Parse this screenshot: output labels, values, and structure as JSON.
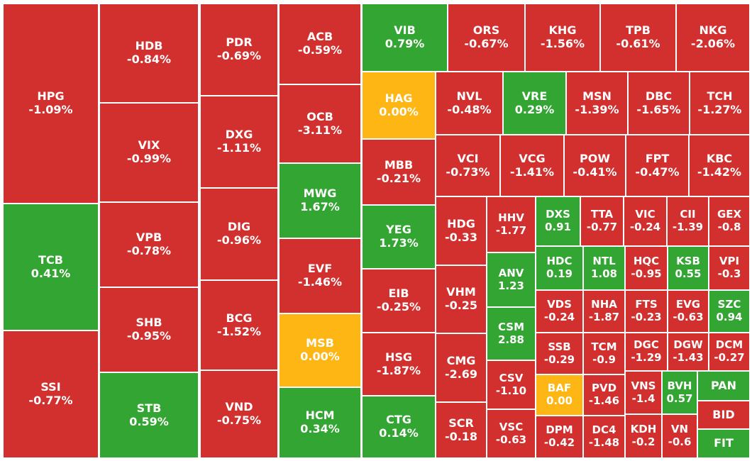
{
  "colors": {
    "down": "#d1302f",
    "up": "#33a532",
    "flat": "#fdb614"
  },
  "chart_data": {
    "type": "treemap",
    "tiles": [
      {
        "ticker": "HPG",
        "change": "-1.09%",
        "value": -1.09
      },
      {
        "ticker": "TCB",
        "change": "0.41%",
        "value": 0.41
      },
      {
        "ticker": "SSI",
        "change": "-0.77%",
        "value": -0.77
      },
      {
        "ticker": "HDB",
        "change": "-0.84%",
        "value": -0.84
      },
      {
        "ticker": "VIX",
        "change": "-0.99%",
        "value": -0.99
      },
      {
        "ticker": "VPB",
        "change": "-0.78%",
        "value": -0.78
      },
      {
        "ticker": "SHB",
        "change": "-0.95%",
        "value": -0.95
      },
      {
        "ticker": "STB",
        "change": "0.59%",
        "value": 0.59
      },
      {
        "ticker": "PDR",
        "change": "-0.69%",
        "value": -0.69
      },
      {
        "ticker": "DXG",
        "change": "-1.11%",
        "value": -1.11
      },
      {
        "ticker": "DIG",
        "change": "-0.96%",
        "value": -0.96
      },
      {
        "ticker": "BCG",
        "change": "-1.52%",
        "value": -1.52
      },
      {
        "ticker": "VND",
        "change": "-0.75%",
        "value": -0.75
      },
      {
        "ticker": "ACB",
        "change": "-0.59%",
        "value": -0.59
      },
      {
        "ticker": "OCB",
        "change": "-3.11%",
        "value": -3.11
      },
      {
        "ticker": "MWG",
        "change": "1.67%",
        "value": 1.67
      },
      {
        "ticker": "EVF",
        "change": "-1.46%",
        "value": -1.46
      },
      {
        "ticker": "MSB",
        "change": "0.00%",
        "value": 0
      },
      {
        "ticker": "HCM",
        "change": "0.34%",
        "value": 0.34
      },
      {
        "ticker": "VIB",
        "change": "0.79%",
        "value": 0.79
      },
      {
        "ticker": "HAG",
        "change": "0.00%",
        "value": 0
      },
      {
        "ticker": "MBB",
        "change": "-0.21%",
        "value": -0.21
      },
      {
        "ticker": "YEG",
        "change": "1.73%",
        "value": 1.73
      },
      {
        "ticker": "EIB",
        "change": "-0.25%",
        "value": -0.25
      },
      {
        "ticker": "HSG",
        "change": "-1.87%",
        "value": -1.87
      },
      {
        "ticker": "CTG",
        "change": "0.14%",
        "value": 0.14
      },
      {
        "ticker": "ORS",
        "change": "-0.67%",
        "value": -0.67
      },
      {
        "ticker": "KHG",
        "change": "-1.56%",
        "value": -1.56
      },
      {
        "ticker": "TPB",
        "change": "-0.61%",
        "value": -0.61
      },
      {
        "ticker": "NKG",
        "change": "-2.06%",
        "value": -2.06
      },
      {
        "ticker": "NVL",
        "change": "-0.48%",
        "value": -0.48
      },
      {
        "ticker": "VRE",
        "change": "0.29%",
        "value": 0.29
      },
      {
        "ticker": "MSN",
        "change": "-1.39%",
        "value": -1.39
      },
      {
        "ticker": "DBC",
        "change": "-1.65%",
        "value": -1.65
      },
      {
        "ticker": "TCH",
        "change": "-1.27%",
        "value": -1.27
      },
      {
        "ticker": "VCI",
        "change": "-0.73%",
        "value": -0.73
      },
      {
        "ticker": "VCG",
        "change": "-1.41%",
        "value": -1.41
      },
      {
        "ticker": "POW",
        "change": "-0.41%",
        "value": -0.41
      },
      {
        "ticker": "FPT",
        "change": "-0.47%",
        "value": -0.47
      },
      {
        "ticker": "KBC",
        "change": "-1.42%",
        "value": -1.42
      },
      {
        "ticker": "HDG",
        "change": "-0.33",
        "value": -0.33
      },
      {
        "ticker": "VHM",
        "change": "-0.25",
        "value": -0.25
      },
      {
        "ticker": "CMG",
        "change": "-2.69",
        "value": -2.69
      },
      {
        "ticker": "SCR",
        "change": "-0.18",
        "value": -0.18
      },
      {
        "ticker": "HHV",
        "change": "-1.77",
        "value": -1.77
      },
      {
        "ticker": "ANV",
        "change": "1.23",
        "value": 1.23
      },
      {
        "ticker": "CSM",
        "change": "2.88",
        "value": 2.88
      },
      {
        "ticker": "CSV",
        "change": "-1.10",
        "value": -1.1
      },
      {
        "ticker": "VSC",
        "change": "-0.63",
        "value": -0.63
      },
      {
        "ticker": "DXS",
        "change": "0.91",
        "value": 0.91
      },
      {
        "ticker": "TTA",
        "change": "-0.77",
        "value": -0.77
      },
      {
        "ticker": "VIC",
        "change": "-0.24",
        "value": -0.24
      },
      {
        "ticker": "CII",
        "change": "-1.39",
        "value": -1.39
      },
      {
        "ticker": "GEX",
        "change": "-0.8",
        "value": -0.8
      },
      {
        "ticker": "HDC",
        "change": "0.19",
        "value": 0.19
      },
      {
        "ticker": "NTL",
        "change": "1.08",
        "value": 1.08
      },
      {
        "ticker": "HQC",
        "change": "-0.95",
        "value": -0.95
      },
      {
        "ticker": "KSB",
        "change": "0.55",
        "value": 0.55
      },
      {
        "ticker": "VPI",
        "change": "-0.3",
        "value": -0.3
      },
      {
        "ticker": "VDS",
        "change": "-0.24",
        "value": -0.24
      },
      {
        "ticker": "NHA",
        "change": "-1.87",
        "value": -1.87
      },
      {
        "ticker": "FTS",
        "change": "-0.23",
        "value": -0.23
      },
      {
        "ticker": "EVG",
        "change": "-0.63",
        "value": -0.63
      },
      {
        "ticker": "SZC",
        "change": "0.94",
        "value": 0.94
      },
      {
        "ticker": "SSB",
        "change": "-0.29",
        "value": -0.29
      },
      {
        "ticker": "TCM",
        "change": "-0.9",
        "value": -0.9
      },
      {
        "ticker": "DGC",
        "change": "-1.29",
        "value": -1.29
      },
      {
        "ticker": "DGW",
        "change": "-1.43",
        "value": -1.43
      },
      {
        "ticker": "DCM",
        "change": "-0.27",
        "value": -0.27
      },
      {
        "ticker": "BAF",
        "change": "0.00",
        "value": 0
      },
      {
        "ticker": "PVD",
        "change": "-1.46",
        "value": -1.46
      },
      {
        "ticker": "VNS",
        "change": "-1.4",
        "value": -1.4
      },
      {
        "ticker": "BVH",
        "change": "0.57",
        "value": 0.57
      },
      {
        "ticker": "PAN",
        "change": "",
        "value": null,
        "state": "up"
      },
      {
        "ticker": "DPM",
        "change": "-0.42",
        "value": -0.42
      },
      {
        "ticker": "DC4",
        "change": "-1.48",
        "value": -1.48
      },
      {
        "ticker": "KDH",
        "change": "-0.2",
        "value": -0.2
      },
      {
        "ticker": "VN",
        "change": "-0.6",
        "value": -0.6
      },
      {
        "ticker": "BID",
        "change": "",
        "value": null,
        "state": "down"
      },
      {
        "ticker": "FIT",
        "change": "",
        "value": null,
        "state": "up"
      }
    ]
  }
}
